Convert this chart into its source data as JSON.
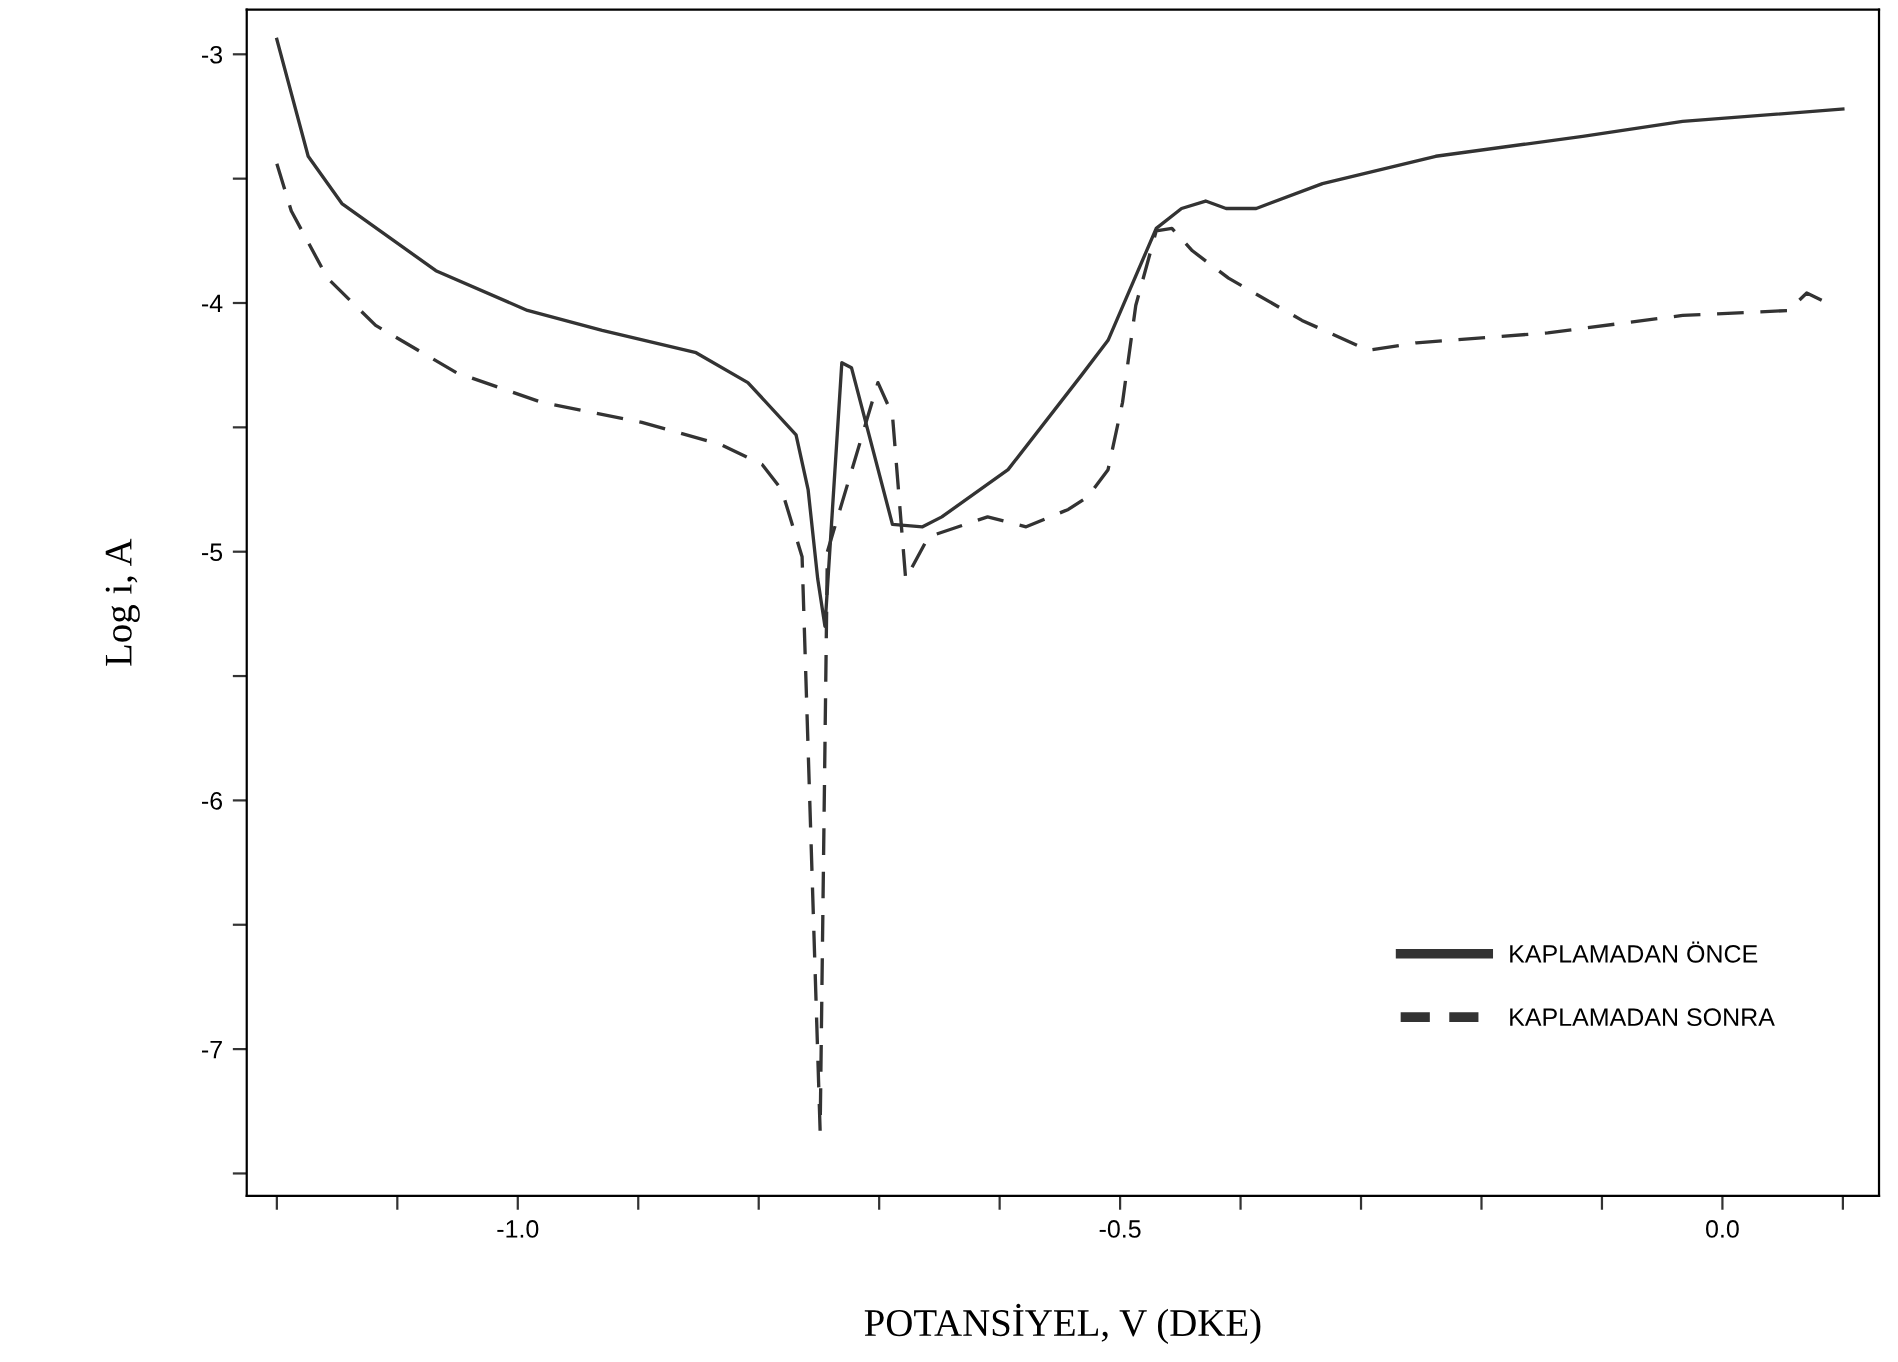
{
  "chart_data": {
    "type": "line",
    "xlabel": "POTANSİYEL, V (DKE)",
    "ylabel": "Log i, A",
    "xlim": [
      -1.225,
      0.13
    ],
    "ylim": [
      -7.59,
      -2.82
    ],
    "xticks": [
      {
        "value": -1.2,
        "label": null
      },
      {
        "value": -1.1,
        "label": null
      },
      {
        "value": -1.0,
        "label": "-1.0"
      },
      {
        "value": -0.9,
        "label": null
      },
      {
        "value": -0.8,
        "label": null
      },
      {
        "value": -0.7,
        "label": null
      },
      {
        "value": -0.6,
        "label": null
      },
      {
        "value": -0.5,
        "label": "-0.5"
      },
      {
        "value": -0.4,
        "label": null
      },
      {
        "value": -0.3,
        "label": null
      },
      {
        "value": -0.2,
        "label": null
      },
      {
        "value": -0.1,
        "label": null
      },
      {
        "value": 0.0,
        "label": "0.0"
      },
      {
        "value": 0.1,
        "label": null
      }
    ],
    "yticks": [
      -3,
      {
        "value": -3.5,
        "label": null
      },
      -4,
      {
        "value": -4.5,
        "label": null
      },
      -5,
      {
        "value": -5.5,
        "label": null
      },
      -6,
      {
        "value": -6.5,
        "label": null
      },
      -7,
      {
        "value": -7.5,
        "label": null
      }
    ],
    "grid": false,
    "legend": "bottom right",
    "marker": "none",
    "series": [
      {
        "name": "KAPLAMADAN ÖNCE",
        "color": "#333333",
        "line_style": "solid",
        "x": [
          -1.2,
          -1.174,
          -1.146,
          -1.068,
          -0.992,
          -0.93,
          -0.852,
          -0.809,
          -0.769,
          -0.759,
          -0.751,
          -0.745,
          -0.731,
          -0.723,
          -0.689,
          -0.664,
          -0.648,
          -0.593,
          -0.532,
          -0.51,
          -0.47,
          -0.449,
          -0.429,
          -0.412,
          -0.387,
          -0.332,
          -0.238,
          -0.116,
          -0.033,
          0.1
        ],
        "values": [
          -2.94,
          -3.41,
          -3.6,
          -3.87,
          -4.03,
          -4.11,
          -4.2,
          -4.32,
          -4.53,
          -4.75,
          -5.11,
          -5.3,
          -4.24,
          -4.26,
          -4.89,
          -4.9,
          -4.86,
          -4.67,
          -4.29,
          -4.15,
          -3.7,
          -3.62,
          -3.59,
          -3.62,
          -3.62,
          -3.52,
          -3.41,
          -3.33,
          -3.27,
          -3.22
        ]
      },
      {
        "name": "KAPLAMADAN SONRA",
        "color": "#333333",
        "line_style": "dashed",
        "x": [
          -1.2,
          -1.188,
          -1.158,
          -1.118,
          -1.051,
          -0.98,
          -0.897,
          -0.831,
          -0.797,
          -0.781,
          -0.764,
          -0.749,
          -0.743,
          -0.701,
          -0.689,
          -0.678,
          -0.659,
          -0.61,
          -0.578,
          -0.543,
          -0.527,
          -0.51,
          -0.498,
          -0.487,
          -0.47,
          -0.457,
          -0.44,
          -0.41,
          -0.349,
          -0.294,
          -0.254,
          -0.145,
          -0.033,
          0.055,
          0.07,
          0.083
        ],
        "values": [
          -3.44,
          -3.63,
          -3.9,
          -4.09,
          -4.28,
          -4.4,
          -4.48,
          -4.57,
          -4.65,
          -4.75,
          -5.02,
          -7.33,
          -5.0,
          -4.32,
          -4.45,
          -5.11,
          -4.94,
          -4.86,
          -4.9,
          -4.83,
          -4.78,
          -4.67,
          -4.4,
          -4.01,
          -3.71,
          -3.7,
          -3.79,
          -3.9,
          -4.07,
          -4.19,
          -4.16,
          -4.12,
          -4.05,
          -4.03,
          -3.96,
          -3.99
        ]
      }
    ]
  }
}
